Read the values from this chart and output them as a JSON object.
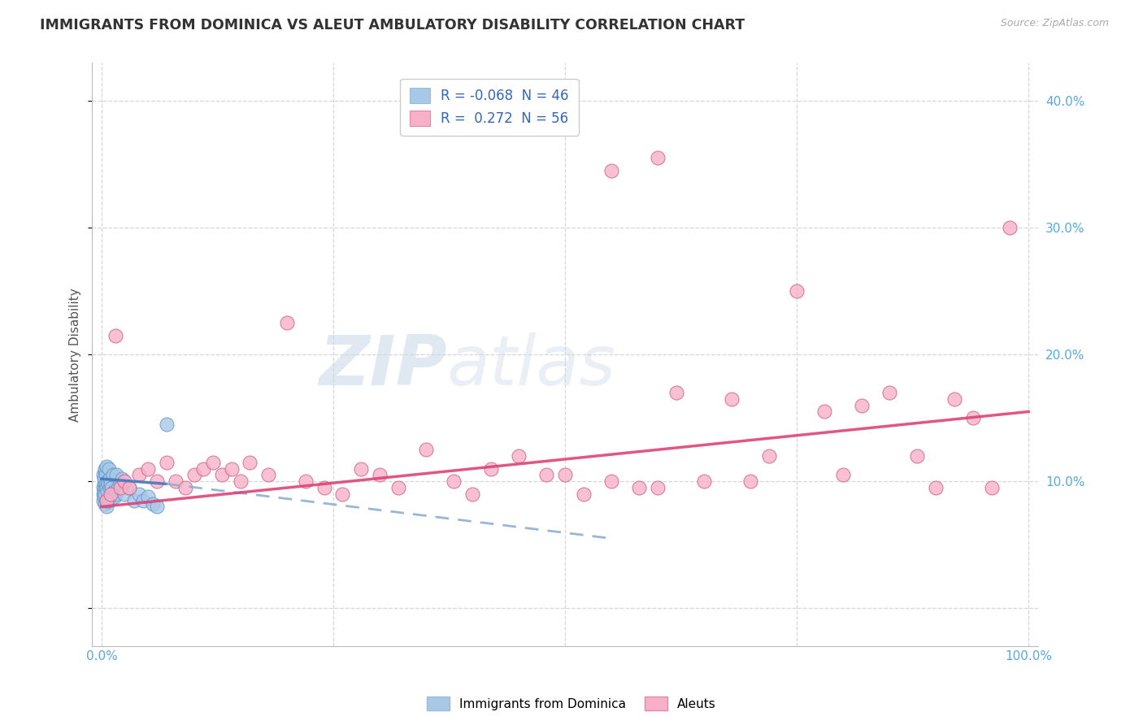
{
  "title": "IMMIGRANTS FROM DOMINICA VS ALEUT AMBULATORY DISABILITY CORRELATION CHART",
  "source": "Source: ZipAtlas.com",
  "ylabel": "Ambulatory Disability",
  "legend_label1": "Immigrants from Dominica",
  "legend_label2": "Aleuts",
  "R1": -0.068,
  "N1": 46,
  "R2": 0.272,
  "N2": 56,
  "color1": "#a8c8e8",
  "color2": "#f8b0c8",
  "trendline1_solid_color": "#4477bb",
  "trendline1_dash_color": "#88aad0",
  "trendline2_color": "#dd4477",
  "background_color": "#ffffff",
  "grid_color": "#cccccc",
  "title_color": "#333333",
  "axis_label_color": "#55aadd",
  "watermark_zip": "ZIP",
  "watermark_atlas": "atlas",
  "blue_x": [
    0.15,
    0.2,
    0.2,
    0.2,
    0.25,
    0.25,
    0.3,
    0.3,
    0.35,
    0.35,
    0.4,
    0.4,
    0.4,
    0.45,
    0.45,
    0.5,
    0.5,
    0.55,
    0.55,
    0.6,
    0.6,
    0.7,
    0.8,
    0.8,
    0.9,
    0.9,
    1.0,
    1.0,
    1.1,
    1.2,
    1.3,
    1.4,
    1.5,
    1.6,
    1.8,
    2.0,
    2.2,
    2.5,
    3.0,
    3.5,
    4.0,
    4.5,
    5.0,
    5.5,
    6.0,
    7.0
  ],
  "blue_y": [
    9.0,
    9.5,
    10.5,
    8.5,
    9.8,
    10.2,
    9.2,
    8.8,
    10.8,
    9.5,
    11.0,
    9.0,
    8.2,
    10.5,
    9.8,
    11.2,
    8.5,
    9.5,
    8.0,
    10.0,
    9.2,
    9.8,
    11.0,
    8.5,
    9.5,
    10.2,
    9.8,
    8.8,
    9.5,
    10.5,
    9.2,
    8.8,
    9.0,
    10.5,
    9.5,
    9.8,
    10.2,
    9.0,
    9.5,
    8.5,
    9.0,
    8.5,
    8.8,
    8.2,
    8.0,
    14.5
  ],
  "pink_x": [
    0.5,
    1.0,
    1.5,
    2.0,
    2.5,
    3.0,
    4.0,
    5.0,
    6.0,
    7.0,
    8.0,
    9.0,
    10.0,
    11.0,
    12.0,
    13.0,
    14.0,
    15.0,
    16.0,
    18.0,
    20.0,
    22.0,
    24.0,
    26.0,
    28.0,
    30.0,
    32.0,
    35.0,
    38.0,
    40.0,
    42.0,
    45.0,
    48.0,
    50.0,
    52.0,
    55.0,
    58.0,
    60.0,
    62.0,
    65.0,
    68.0,
    70.0,
    72.0,
    75.0,
    78.0,
    80.0,
    82.0,
    85.0,
    88.0,
    90.0,
    92.0,
    94.0,
    96.0,
    98.0,
    55.0,
    60.0
  ],
  "pink_y": [
    8.5,
    9.0,
    21.5,
    9.5,
    10.0,
    9.5,
    10.5,
    11.0,
    10.0,
    11.5,
    10.0,
    9.5,
    10.5,
    11.0,
    11.5,
    10.5,
    11.0,
    10.0,
    11.5,
    10.5,
    22.5,
    10.0,
    9.5,
    9.0,
    11.0,
    10.5,
    9.5,
    12.5,
    10.0,
    9.0,
    11.0,
    12.0,
    10.5,
    10.5,
    9.0,
    10.0,
    9.5,
    9.5,
    17.0,
    10.0,
    16.5,
    10.0,
    12.0,
    25.0,
    15.5,
    10.5,
    16.0,
    17.0,
    12.0,
    9.5,
    16.5,
    15.0,
    9.5,
    30.0,
    34.5,
    35.5
  ],
  "blue_trend_x0": 0.0,
  "blue_trend_y0": 10.2,
  "blue_trend_x1": 7.0,
  "blue_trend_y1": 9.8,
  "blue_dash_x0": 7.0,
  "blue_dash_y0": 9.8,
  "blue_dash_x1": 55.0,
  "blue_dash_y1": 5.5,
  "pink_trend_x0": 0.0,
  "pink_trend_y0": 8.0,
  "pink_trend_x1": 100.0,
  "pink_trend_y1": 15.5,
  "xlim_min": -1,
  "xlim_max": 101,
  "ylim_min": -3,
  "ylim_max": 43,
  "yticks": [
    0,
    10,
    20,
    30,
    40
  ],
  "xticks": [
    0,
    25,
    50,
    75,
    100
  ]
}
